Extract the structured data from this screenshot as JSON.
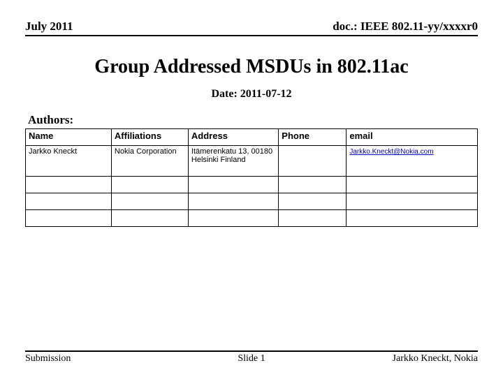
{
  "header": {
    "left": "July 2011",
    "right": "doc.: IEEE 802.11-yy/xxxxr0"
  },
  "title": "Group Addressed MSDUs in 802.11ac",
  "date_label": "Date:",
  "date_value": "2011-07-12",
  "authors_label": "Authors:",
  "table": {
    "columns": [
      "Name",
      "Affiliations",
      "Address",
      "Phone",
      "email"
    ],
    "rows": [
      {
        "name": "Jarkko Kneckt",
        "affiliations": "Nokia Corporation",
        "address": "Itämerenkatu 13, 00180 Helsinki Finland",
        "phone": "",
        "email": "Jarkko.Kneckt@Nokia.com"
      },
      {
        "name": "",
        "affiliations": "",
        "address": "",
        "phone": "",
        "email": ""
      },
      {
        "name": "",
        "affiliations": "",
        "address": "",
        "phone": "",
        "email": ""
      },
      {
        "name": "",
        "affiliations": "",
        "address": "",
        "phone": "",
        "email": ""
      }
    ]
  },
  "footer": {
    "left": "Submission",
    "center": "Slide 1",
    "right": "Jarkko Kneckt, Nokia"
  },
  "colors": {
    "text": "#000000",
    "link": "#0000cc",
    "border": "#000000",
    "background": "#ffffff"
  }
}
